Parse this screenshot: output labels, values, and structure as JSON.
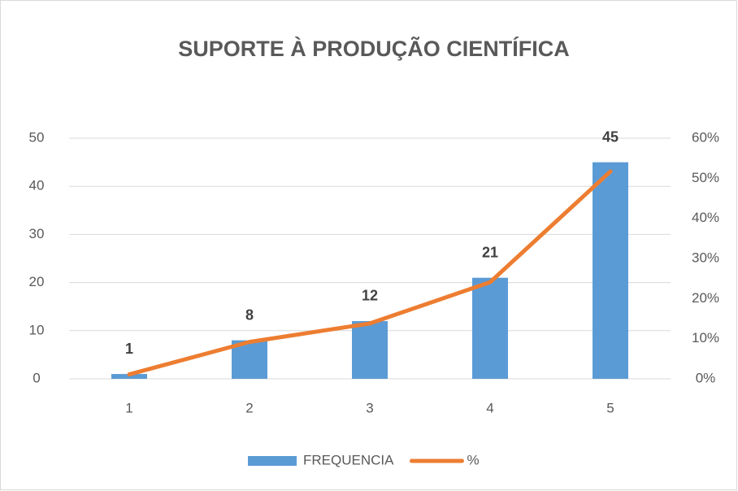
{
  "chart_data": {
    "type": "combo",
    "title": "SUPORTE À PRODUÇÃO CIENTÍFICA",
    "categories": [
      "1",
      "2",
      "3",
      "4",
      "5"
    ],
    "series": [
      {
        "name": "FREQUENCIA",
        "type": "bar",
        "color": "#5b9bd5",
        "values": [
          1,
          8,
          12,
          21,
          45
        ]
      },
      {
        "name": "%",
        "type": "line",
        "axis": "y2",
        "color": "#ed7d31",
        "values": [
          1.1,
          9.2,
          13.8,
          24.1,
          51.7
        ]
      }
    ],
    "ylim": [
      0,
      50
    ],
    "yticks": [
      0,
      10,
      20,
      30,
      40,
      50
    ],
    "y2lim": [
      0,
      60
    ],
    "y2ticks": [
      {
        "value": 0,
        "label": "0%"
      },
      {
        "value": 10,
        "label": "10%"
      },
      {
        "value": 20,
        "label": "20%"
      },
      {
        "value": 30,
        "label": "30%"
      },
      {
        "value": 40,
        "label": "40%"
      },
      {
        "value": 50,
        "label": "50%"
      },
      {
        "value": 60,
        "label": "60%"
      }
    ],
    "grid": true,
    "legend": "bottom"
  }
}
